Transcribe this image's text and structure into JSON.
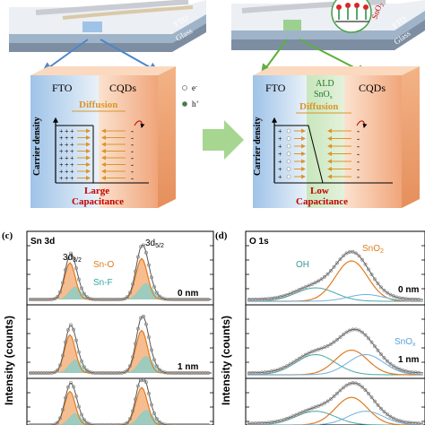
{
  "schematic": {
    "left_device": {
      "fto_layer": "FTO",
      "glass_layer": "Glass"
    },
    "right_device": {
      "sno2_layer": "SnO",
      "glass_layer": "Glass",
      "fto_layer": "FTO"
    },
    "left_block": {
      "fto": "FTO",
      "cqds": "CQDs",
      "diffusion": "Diffusion",
      "carrier_density": "Carrier density",
      "large": "Large",
      "capacitance": "Capacitance"
    },
    "right_block": {
      "fto": "FTO",
      "ald": "ALD",
      "snox": "SnO",
      "snox_sub": "x",
      "cqds": "CQDs",
      "diffusion": "Diffusion",
      "carrier_density": "Carrier density",
      "low": "Low",
      "capacitance": "Capacitance"
    },
    "legend": {
      "electron": "e",
      "electron_sup": "-",
      "hole": "h",
      "hole_sup": "+"
    },
    "colors": {
      "fto_blue": "#bcd6f0",
      "cqd_orange": "#f2b58f",
      "ald_green": "#a9d79a",
      "label_red": "#c00000",
      "diffusion_orange": "#d9962b",
      "arrow_green": "#a6d690"
    }
  },
  "panel_c": {
    "label": "(c)",
    "element": "Sn 3d",
    "peak1": "3d",
    "peak1_sub": "3/2",
    "peak2": "3d",
    "peak2_sub": "5/2",
    "sno": "Sn-O",
    "snf": "Sn-F",
    "thickness_0": "0 nm",
    "thickness_1": "1 nm"
  },
  "panel_d": {
    "label": "(d)",
    "element": "O 1s",
    "oh": "OH",
    "sno2": "SnO",
    "sno2_sub": "2",
    "snox": "SnO",
    "snox_sub": "x",
    "thickness_0": "0 nm",
    "thickness_1": "1 nm"
  },
  "ylabel": "Intensity (counts)"
}
